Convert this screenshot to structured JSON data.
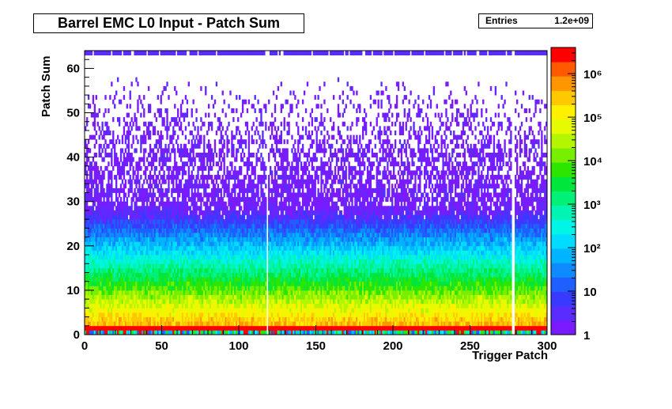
{
  "title": "Barrel EMC L0 Input - Patch Sum",
  "stats": {
    "label": "Entries",
    "value": "1.2e+09"
  },
  "chart_data": {
    "type": "heatmap",
    "title": "Barrel EMC L0 Input - Patch Sum",
    "xlabel": "Trigger Patch",
    "ylabel": "Patch Sum",
    "xlim": [
      0,
      300
    ],
    "ylim": [
      0,
      64
    ],
    "x_ticks": [
      0,
      50,
      100,
      150,
      200,
      250,
      300
    ],
    "y_ticks": [
      0,
      10,
      20,
      30,
      40,
      50,
      60
    ],
    "z_scale": "log",
    "z_range": [
      1,
      4000000
    ],
    "z_tick_labels": [
      "1",
      "10",
      "10²",
      "10³",
      "10⁴",
      "10⁵",
      "10⁶"
    ],
    "x_bins": 300,
    "y_bins": 64,
    "empty_columns": [
      118,
      277,
      278
    ],
    "hot_row_y": 1.5,
    "grid": false
  },
  "palette": [
    "#7a1bff",
    "#5a2dff",
    "#3a39ff",
    "#1f5fff",
    "#0f8bff",
    "#00b4ff",
    "#00dcff",
    "#00f5e6",
    "#00f5b4",
    "#00f078",
    "#00e63c",
    "#2ce600",
    "#78ee00",
    "#b4f500",
    "#e6fa00",
    "#fff000",
    "#ffc800",
    "#ff9600",
    "#ff5a00",
    "#ff0000"
  ]
}
